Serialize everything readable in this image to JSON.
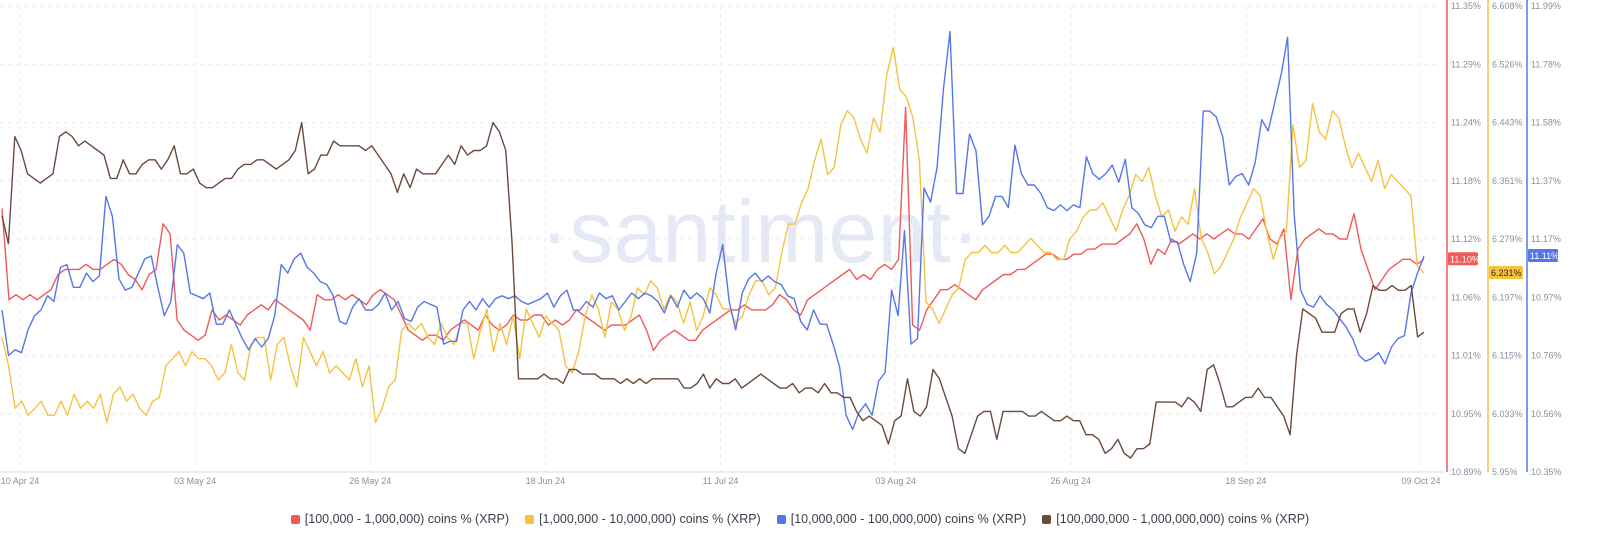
{
  "chart_data": {
    "type": "line",
    "watermark": "·santiment·",
    "x_ticks": [
      "10 Apr 24",
      "03 May 24",
      "26 May 24",
      "18 Jun 24",
      "11 Jul 24",
      "03 Aug 24",
      "26 Aug 24",
      "18 Sep 24",
      "09 Oct 24"
    ],
    "x_range": [
      "2024-04-10",
      "2024-10-09"
    ],
    "axes": [
      {
        "id": "red",
        "color": "#f05a5a",
        "ticks": [
          "11.35%",
          "11.29%",
          "11.24%",
          "11.18%",
          "11.12%",
          "11.06%",
          "11.01%",
          "10.95%",
          "10.89%"
        ],
        "range": [
          10.89,
          11.35
        ],
        "last_label": "11.10%"
      },
      {
        "id": "yellow",
        "color": "#f5c342",
        "ticks": [
          "6.608%",
          "6.526%",
          "6.443%",
          "6.361%",
          "6.279%",
          "6.197%",
          "6.115%",
          "6.033%",
          "5.95%"
        ],
        "range": [
          5.95,
          6.608
        ],
        "last_label": "6.231%"
      },
      {
        "id": "blue",
        "color": "#5677e8",
        "ticks": [
          "11.99%",
          "11.78%",
          "11.58%",
          "11.37%",
          "11.17%",
          "10.97%",
          "10.76%",
          "10.56%",
          "10.35%"
        ],
        "range": [
          10.35,
          11.99
        ],
        "last_label": "11.11%"
      }
    ],
    "series": [
      {
        "name": "[100,000  - 1,000,000) coins % (XRP)",
        "axis": "red",
        "color": "#f05a5a",
        "values": [
          11.15,
          11.06,
          11.065,
          11.06,
          11.065,
          11.06,
          11.065,
          11.07,
          11.085,
          11.09,
          11.09,
          11.09,
          11.095,
          11.09,
          11.09,
          11.095,
          11.1,
          11.095,
          11.085,
          11.08,
          11.07,
          11.085,
          11.09,
          11.135,
          11.125,
          11.04,
          11.03,
          11.025,
          11.02,
          11.025,
          11.05,
          11.04,
          11.045,
          11.04,
          11.035,
          11.045,
          11.05,
          11.055,
          11.05,
          11.06,
          11.055,
          11.05,
          11.045,
          11.04,
          11.03,
          11.065,
          11.06,
          11.06,
          11.065,
          11.06,
          11.065,
          11.06,
          11.055,
          11.065,
          11.07,
          11.065,
          11.06,
          11.045,
          11.03,
          11.025,
          11.02,
          11.025,
          11.025,
          11.02,
          11.03,
          11.035,
          11.04,
          11.035,
          11.03,
          11.045,
          11.035,
          11.03,
          11.035,
          11.045,
          11.04,
          11.04,
          11.045,
          11.045,
          11.035,
          11.04,
          11.035,
          11.04,
          11.05,
          11.045,
          11.04,
          11.035,
          11.03,
          11.035,
          11.035,
          11.035,
          11.04,
          11.045,
          11.03,
          11.01,
          11.02,
          11.025,
          11.03,
          11.025,
          11.02,
          11.02,
          11.03,
          11.035,
          11.04,
          11.045,
          11.05,
          11.05,
          11.055,
          11.05,
          11.05,
          11.05,
          11.055,
          11.065,
          11.06,
          11.05,
          11.045,
          11.06,
          11.065,
          11.07,
          11.075,
          11.08,
          11.085,
          11.09,
          11.08,
          11.085,
          11.08,
          11.09,
          11.095,
          11.09,
          11.1,
          11.25,
          11.035,
          11.03,
          11.05,
          11.06,
          11.07,
          11.07,
          11.075,
          11.07,
          11.065,
          11.06,
          11.07,
          11.075,
          11.08,
          11.085,
          11.085,
          11.09,
          11.09,
          11.095,
          11.1,
          11.105,
          11.105,
          11.1,
          11.1,
          11.105,
          11.105,
          11.11,
          11.11,
          11.115,
          11.115,
          11.115,
          11.12,
          11.125,
          11.135,
          11.12,
          11.095,
          11.11,
          11.105,
          11.12,
          11.115,
          11.12,
          11.125,
          11.12,
          11.125,
          11.12,
          11.125,
          11.13,
          11.125,
          11.125,
          11.12,
          11.13,
          11.14,
          11.12,
          11.115,
          11.13,
          11.06,
          11.11,
          11.12,
          11.125,
          11.13,
          11.125,
          11.125,
          11.12,
          11.12,
          11.145,
          11.11,
          11.09,
          11.07,
          11.08,
          11.09,
          11.095,
          11.1,
          11.1,
          11.095,
          11.1
        ]
      },
      {
        "name": "[1,000,000 - 10,000,000) coins % (XRP)",
        "axis": "yellow",
        "color": "#f5c342",
        "values": [
          6.14,
          6.1,
          6.04,
          6.05,
          6.03,
          6.04,
          6.05,
          6.03,
          6.03,
          6.05,
          6.03,
          6.06,
          6.04,
          6.05,
          6.04,
          6.06,
          6.02,
          6.06,
          6.07,
          6.05,
          6.06,
          6.04,
          6.03,
          6.05,
          6.055,
          6.1,
          6.11,
          6.12,
          6.1,
          6.12,
          6.11,
          6.11,
          6.1,
          6.08,
          6.09,
          6.13,
          6.09,
          6.08,
          6.13,
          6.14,
          6.14,
          6.08,
          6.13,
          6.14,
          6.1,
          6.07,
          6.14,
          6.12,
          6.1,
          6.12,
          6.09,
          6.1,
          6.09,
          6.08,
          6.11,
          6.07,
          6.1,
          6.02,
          6.04,
          6.07,
          6.08,
          6.15,
          6.16,
          6.15,
          6.16,
          6.14,
          6.13,
          6.16,
          6.14,
          6.13,
          6.16,
          6.16,
          6.11,
          6.15,
          6.18,
          6.12,
          6.16,
          6.13,
          6.17,
          6.11,
          6.18,
          6.16,
          6.14,
          6.17,
          6.16,
          6.15,
          6.1,
          6.09,
          6.12,
          6.17,
          6.2,
          6.18,
          6.14,
          6.19,
          6.18,
          6.15,
          6.17,
          6.21,
          6.2,
          6.22,
          6.21,
          6.18,
          6.2,
          6.19,
          6.16,
          6.19,
          6.15,
          6.17,
          6.21,
          6.2,
          6.18,
          6.18,
          6.16,
          6.17,
          6.2,
          6.22,
          6.22,
          6.2,
          6.21,
          6.26,
          6.3,
          6.3,
          6.33,
          6.35,
          6.39,
          6.42,
          6.37,
          6.38,
          6.44,
          6.46,
          6.45,
          6.42,
          6.4,
          6.45,
          6.43,
          6.51,
          6.55,
          6.49,
          6.48,
          6.45,
          6.39,
          6.19,
          6.18,
          6.16,
          6.18,
          6.2,
          6.21,
          6.25,
          6.26,
          6.26,
          6.27,
          6.26,
          6.26,
          6.27,
          6.26,
          6.26,
          6.27,
          6.28,
          6.27,
          6.26,
          6.26,
          6.25,
          6.25,
          6.28,
          6.29,
          6.31,
          6.32,
          6.32,
          6.33,
          6.31,
          6.29,
          6.32,
          6.34,
          6.37,
          6.36,
          6.38,
          6.34,
          6.31,
          6.32,
          6.29,
          6.31,
          6.3,
          6.35,
          6.28,
          6.26,
          6.23,
          6.24,
          6.26,
          6.28,
          6.31,
          6.33,
          6.35,
          6.34,
          6.29,
          6.25,
          6.28,
          6.29,
          6.44,
          6.38,
          6.39,
          6.47,
          6.43,
          6.42,
          6.46,
          6.45,
          6.41,
          6.38,
          6.4,
          6.38,
          6.36,
          6.39,
          6.35,
          6.37,
          6.36,
          6.35,
          6.34,
          6.24,
          6.231
        ]
      },
      {
        "name": "[10,000,000 - 100,000,000) coins % (XRP)",
        "axis": "blue",
        "color": "#5677e8",
        "values": [
          10.92,
          10.76,
          10.78,
          10.77,
          10.85,
          10.9,
          10.92,
          10.97,
          10.95,
          11.07,
          11.08,
          11.0,
          11.0,
          11.05,
          11.02,
          11.04,
          11.32,
          11.25,
          11.03,
          10.99,
          11.0,
          11.05,
          11.1,
          11.11,
          11.0,
          10.9,
          10.95,
          11.15,
          11.12,
          10.98,
          10.97,
          10.96,
          10.98,
          10.87,
          10.87,
          10.92,
          10.87,
          10.82,
          10.78,
          10.82,
          10.79,
          10.82,
          10.9,
          11.08,
          11.05,
          11.1,
          11.12,
          11.07,
          11.05,
          11.02,
          11.01,
          10.97,
          10.88,
          10.87,
          10.93,
          10.96,
          10.92,
          10.92,
          10.94,
          10.98,
          10.92,
          10.95,
          10.89,
          10.88,
          10.93,
          10.95,
          10.94,
          10.93,
          10.8,
          10.81,
          10.81,
          10.92,
          10.95,
          10.92,
          10.96,
          10.93,
          10.96,
          10.97,
          10.96,
          10.97,
          10.95,
          10.94,
          10.95,
          10.96,
          10.98,
          10.93,
          10.97,
          10.99,
          10.92,
          10.92,
          10.95,
          10.93,
          10.98,
          10.96,
          10.97,
          10.92,
          10.95,
          10.98,
          10.96,
          10.98,
          10.97,
          10.95,
          10.91,
          10.97,
          10.93,
          10.99,
          10.96,
          10.98,
          10.96,
          10.91,
          11.05,
          11.15,
          10.95,
          10.85,
          10.98,
          11.03,
          11.05,
          11.02,
          11.04,
          11.02,
          11.01,
          10.97,
          10.96,
          10.88,
          10.85,
          10.92,
          10.87,
          10.87,
          10.8,
          10.72,
          10.55,
          10.5,
          10.56,
          10.59,
          10.55,
          10.67,
          10.7,
          10.99,
          10.9,
          11.2,
          10.8,
          10.82,
          11.35,
          11.3,
          11.42,
          11.7,
          11.9,
          11.33,
          11.33,
          11.54,
          11.48,
          11.22,
          11.25,
          11.32,
          11.32,
          11.28,
          11.5,
          11.4,
          11.36,
          11.36,
          11.33,
          11.28,
          11.27,
          11.29,
          11.27,
          11.29,
          11.28,
          11.46,
          11.4,
          11.38,
          11.4,
          11.43,
          11.37,
          11.45,
          11.28,
          11.26,
          11.22,
          11.21,
          11.25,
          11.25,
          11.16,
          11.16,
          11.08,
          11.02,
          11.12,
          11.62,
          11.62,
          11.6,
          11.53,
          11.36,
          11.39,
          11.4,
          11.36,
          11.44,
          11.59,
          11.55,
          11.65,
          11.75,
          11.88,
          11.26,
          10.99,
          10.94,
          10.93,
          10.97,
          10.94,
          10.92,
          10.89,
          10.86,
          10.82,
          10.76,
          10.74,
          10.75,
          10.77,
          10.73,
          10.79,
          10.82,
          10.83,
          10.98,
          11.05,
          11.11
        ]
      },
      {
        "name": "[100,000,000 - 1,000,000,000) coins % (XRP)",
        "axis": "black",
        "color": "#6b4a3c",
        "values": [
          55,
          49,
          72,
          69,
          64,
          63,
          62,
          63,
          64,
          72,
          73,
          72,
          70,
          71,
          70,
          69,
          68,
          63,
          63,
          67,
          64,
          64,
          66,
          67,
          67,
          65,
          67,
          70,
          64,
          64,
          65,
          62,
          61,
          61,
          62,
          63,
          63,
          65,
          66,
          66,
          67,
          67,
          66,
          65,
          66,
          67,
          69,
          75,
          64,
          65,
          68,
          68,
          71,
          70,
          70,
          70,
          70,
          69,
          70,
          68,
          66,
          64,
          60,
          64,
          61,
          65,
          64,
          64,
          64,
          66,
          68,
          66,
          70,
          68,
          69,
          69,
          70,
          75,
          73,
          69,
          49,
          20,
          20,
          20,
          20,
          21,
          20,
          20,
          19,
          22,
          22,
          21,
          21,
          21,
          20,
          20,
          20,
          19,
          20,
          19,
          20,
          19,
          20,
          20,
          20,
          20,
          20,
          18,
          18,
          19,
          21,
          18,
          20,
          19,
          19,
          20,
          18,
          19,
          20,
          21,
          20,
          19,
          18,
          18,
          19,
          17,
          18,
          18,
          17,
          19,
          17,
          17,
          16,
          16,
          13,
          11,
          12,
          11,
          10,
          6,
          11,
          12,
          20,
          13,
          12,
          14,
          22,
          20,
          16,
          12,
          5,
          4,
          8,
          12,
          13,
          13,
          7,
          13,
          13,
          13,
          13,
          12,
          12,
          13,
          12,
          11,
          11,
          12,
          11,
          11,
          8,
          8,
          7,
          4,
          5,
          7,
          4,
          3,
          5,
          5,
          6,
          15,
          15,
          15,
          15,
          14,
          16,
          15,
          13,
          22,
          23,
          19,
          14,
          14,
          15,
          16,
          16,
          18,
          16,
          16,
          14,
          12,
          8,
          25,
          35,
          34,
          33,
          30,
          30,
          30,
          34,
          35,
          35,
          30,
          34,
          40,
          39,
          39,
          40,
          39,
          39,
          40,
          29,
          30
        ]
      }
    ],
    "legend_position": "bottom"
  }
}
